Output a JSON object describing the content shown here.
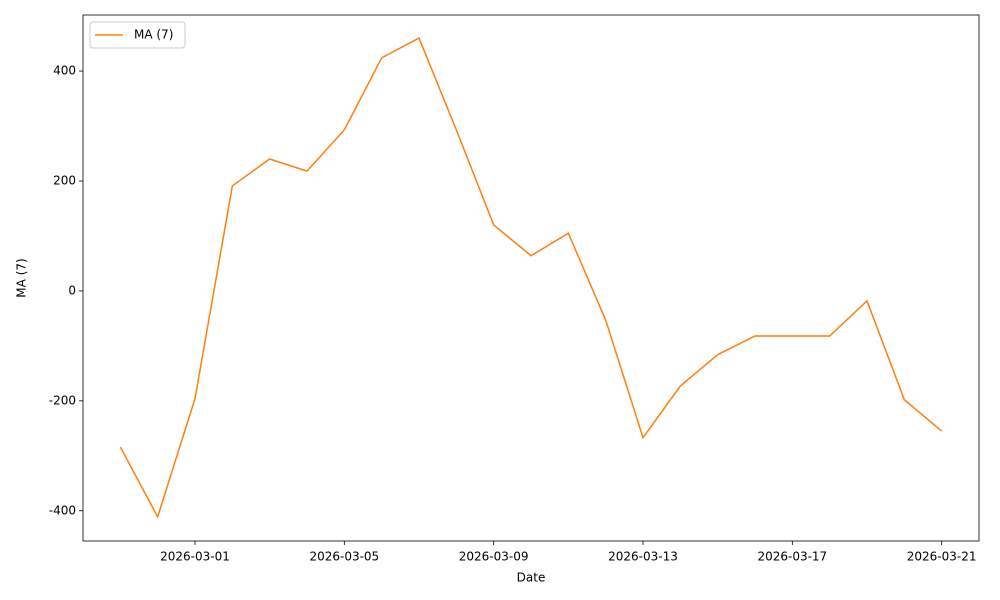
{
  "chart_data": {
    "type": "line",
    "x_label": "Date",
    "y_label": "MA (7)",
    "x": [
      "2026-02-27",
      "2026-02-28",
      "2026-03-01",
      "2026-03-02",
      "2026-03-03",
      "2026-03-04",
      "2026-03-05",
      "2026-03-06",
      "2026-03-07",
      "2026-03-08",
      "2026-03-09",
      "2026-03-10",
      "2026-03-11",
      "2026-03-12",
      "2026-03-13",
      "2026-03-14",
      "2026-03-15",
      "2026-03-16",
      "2026-03-17",
      "2026-03-18",
      "2026-03-19",
      "2026-03-20",
      "2026-03-21"
    ],
    "series": [
      {
        "name": "MA (7)",
        "color": "#ff7f0e",
        "values": [
          -284,
          -411,
          -196,
          191,
          240,
          218,
          293,
          424,
          460,
          293,
          120,
          64,
          105,
          -53,
          -267,
          -173,
          -116,
          -82,
          -82,
          -82,
          -18,
          -198,
          -255
        ]
      }
    ],
    "xlim": [
      "2026-02-26",
      "2026-03-22"
    ],
    "xticks": [
      "2026-03-01",
      "2026-03-05",
      "2026-03-09",
      "2026-03-13",
      "2026-03-17",
      "2026-03-21"
    ],
    "ylim": [
      -455,
      502
    ],
    "yticks": [
      -400,
      -200,
      0,
      200,
      400
    ],
    "legend": "upper left",
    "grid": false
  }
}
